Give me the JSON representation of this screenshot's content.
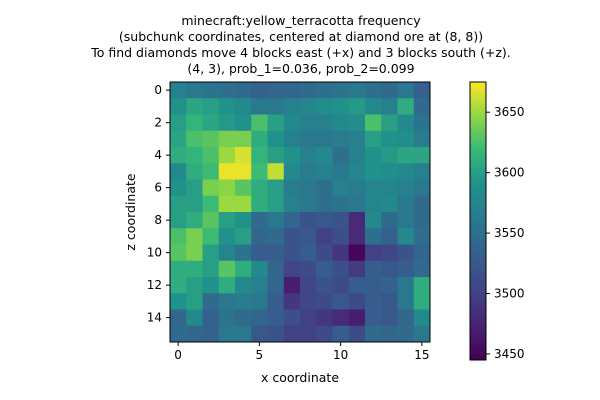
{
  "chart_data": {
    "type": "heatmap",
    "title": [
      "minecraft:yellow_terracotta frequency",
      "(subchunk coordinates, centered at diamond ore at (8, 8))",
      "To find diamonds move 4 blocks east (+x) and 3 blocks south (+z).",
      "(4, 3), prob_1=0.036, prob_2=0.099"
    ],
    "xlabel": "x coordinate",
    "ylabel": "z coordinate",
    "x_ticks": [
      0,
      5,
      10,
      15
    ],
    "y_ticks": [
      0,
      2,
      4,
      6,
      8,
      10,
      12,
      14
    ],
    "colorbar_ticks": [
      3450,
      3500,
      3550,
      3600,
      3650
    ],
    "colorbar_range": [
      3445,
      3675
    ],
    "colormap": "viridis",
    "grid": false,
    "colorbar_position": "right",
    "values": [
      [
        3570,
        3560,
        3555,
        3550,
        3545,
        3535,
        3540,
        3540,
        3545,
        3550,
        3555,
        3560,
        3550,
        3545,
        3560,
        3535
      ],
      [
        3590,
        3605,
        3600,
        3590,
        3580,
        3560,
        3560,
        3570,
        3575,
        3585,
        3590,
        3595,
        3580,
        3570,
        3610,
        3545
      ],
      [
        3600,
        3615,
        3605,
        3595,
        3590,
        3625,
        3600,
        3580,
        3570,
        3570,
        3580,
        3585,
        3625,
        3600,
        3580,
        3555
      ],
      [
        3605,
        3625,
        3630,
        3640,
        3640,
        3610,
        3590,
        3570,
        3560,
        3560,
        3565,
        3570,
        3600,
        3590,
        3585,
        3565
      ],
      [
        3610,
        3615,
        3625,
        3650,
        3665,
        3615,
        3600,
        3590,
        3570,
        3580,
        3550,
        3570,
        3590,
        3595,
        3605,
        3605
      ],
      [
        3580,
        3610,
        3620,
        3670,
        3670,
        3620,
        3660,
        3580,
        3565,
        3570,
        3560,
        3575,
        3590,
        3585,
        3580,
        3570
      ],
      [
        3590,
        3600,
        3640,
        3645,
        3630,
        3610,
        3600,
        3565,
        3560,
        3550,
        3570,
        3565,
        3575,
        3575,
        3570,
        3560
      ],
      [
        3600,
        3600,
        3620,
        3650,
        3650,
        3610,
        3600,
        3570,
        3560,
        3550,
        3555,
        3560,
        3575,
        3580,
        3560,
        3545
      ],
      [
        3600,
        3610,
        3630,
        3600,
        3590,
        3545,
        3560,
        3540,
        3520,
        3525,
        3520,
        3480,
        3580,
        3545,
        3560,
        3545
      ],
      [
        3625,
        3640,
        3620,
        3590,
        3600,
        3540,
        3545,
        3520,
        3525,
        3500,
        3515,
        3480,
        3550,
        3535,
        3580,
        3550
      ],
      [
        3630,
        3640,
        3600,
        3575,
        3555,
        3530,
        3530,
        3520,
        3530,
        3510,
        3490,
        3450,
        3500,
        3505,
        3520,
        3540
      ],
      [
        3610,
        3610,
        3600,
        3630,
        3610,
        3580,
        3540,
        3505,
        3510,
        3530,
        3515,
        3495,
        3530,
        3525,
        3530,
        3545
      ],
      [
        3610,
        3600,
        3590,
        3610,
        3580,
        3570,
        3540,
        3470,
        3505,
        3520,
        3510,
        3530,
        3530,
        3535,
        3560,
        3610
      ],
      [
        3590,
        3600,
        3545,
        3560,
        3565,
        3560,
        3530,
        3490,
        3505,
        3510,
        3525,
        3510,
        3530,
        3525,
        3560,
        3610
      ],
      [
        3540,
        3580,
        3535,
        3555,
        3545,
        3540,
        3530,
        3515,
        3500,
        3490,
        3480,
        3470,
        3530,
        3525,
        3540,
        3580
      ],
      [
        3545,
        3540,
        3535,
        3560,
        3560,
        3525,
        3520,
        3500,
        3500,
        3510,
        3530,
        3510,
        3545,
        3540,
        3545,
        3560
      ]
    ]
  }
}
